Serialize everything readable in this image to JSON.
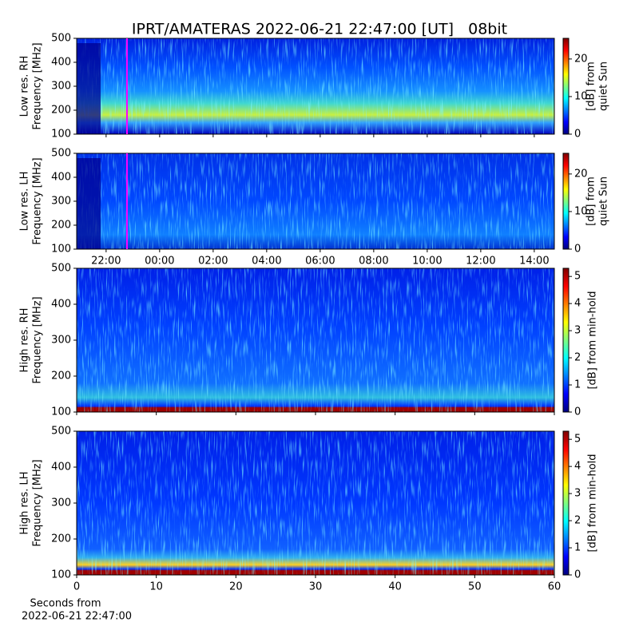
{
  "title": "IPRT/AMATERAS 2022-06-21 22:47:00 [UT]   08bit",
  "chart_data": [
    {
      "type": "heatmap",
      "ylabel": [
        "Low res. RH",
        "Frequency [MHz]"
      ],
      "ylim": [
        100,
        500
      ],
      "yticks": [
        100,
        200,
        300,
        400,
        500
      ],
      "xlim": [
        20.9,
        38.75
      ],
      "xticks": [
        22,
        24,
        26,
        28,
        30,
        32,
        34,
        36,
        38
      ],
      "colormap": "jet",
      "markers": [
        {
          "x": 22.78,
          "color": "#ff00ff"
        }
      ],
      "colorbar": {
        "label": [
          "[dB] from",
          "quiet Sun"
        ],
        "clim": [
          0,
          25.5
        ],
        "ticks": [
          0,
          10,
          20
        ]
      }
    },
    {
      "type": "heatmap",
      "ylabel": [
        "Low res. LH",
        "Frequency [MHz]"
      ],
      "ylim": [
        100,
        500
      ],
      "yticks": [
        100,
        200,
        300,
        400,
        500
      ],
      "xlim": [
        20.9,
        38.75
      ],
      "xticks": [
        {
          "value": 22,
          "label": "22:00"
        },
        {
          "value": 24,
          "label": "00:00"
        },
        {
          "value": 26,
          "label": "02:00"
        },
        {
          "value": 28,
          "label": "04:00"
        },
        {
          "value": 30,
          "label": "06:00"
        },
        {
          "value": 32,
          "label": "08:00"
        },
        {
          "value": 34,
          "label": "10:00"
        },
        {
          "value": 36,
          "label": "12:00"
        },
        {
          "value": 38,
          "label": "14:00"
        }
      ],
      "colormap": "jet",
      "markers": [
        {
          "x": 22.78,
          "color": "#ff00ff"
        }
      ],
      "colorbar": {
        "label": [
          "[dB] from",
          "quiet Sun"
        ],
        "clim": [
          0,
          25.5
        ],
        "ticks": [
          0,
          10,
          20
        ]
      }
    },
    {
      "type": "heatmap",
      "ylabel": [
        "High res. RH",
        "Frequency [MHz]"
      ],
      "ylim": [
        100,
        500
      ],
      "yticks": [
        100,
        200,
        300,
        400,
        500
      ],
      "xlim": [
        0,
        60
      ],
      "xticks": [
        0,
        10,
        20,
        30,
        40,
        50,
        60
      ],
      "colormap": "jet",
      "colorbar": {
        "label": [
          "[dB] from min-hold"
        ],
        "clim": [
          0,
          5.3
        ],
        "ticks": [
          0,
          1,
          2,
          3,
          4,
          5
        ]
      }
    },
    {
      "type": "heatmap",
      "ylabel": [
        "High res. LH",
        "Frequency [MHz]"
      ],
      "ylim": [
        100,
        500
      ],
      "yticks": [
        100,
        200,
        300,
        400,
        500
      ],
      "xlim": [
        0,
        60
      ],
      "xticks": [
        0,
        10,
        20,
        30,
        40,
        50,
        60
      ],
      "xlabel": [
        "Seconds from",
        "2022-06-21 22:47:00"
      ],
      "colormap": "jet",
      "colorbar": {
        "label": [
          "[dB] from min-hold"
        ],
        "clim": [
          0,
          5.3
        ],
        "ticks": [
          0,
          1,
          2,
          3,
          4,
          5
        ]
      }
    }
  ]
}
